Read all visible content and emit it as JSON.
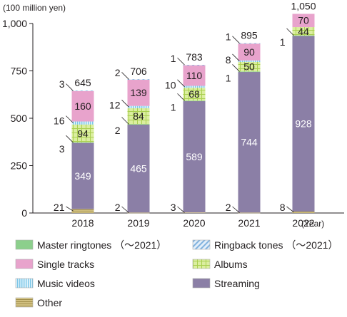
{
  "chart_data": {
    "type": "bar",
    "stacked": true,
    "y_unit_label": "(100 million yen)",
    "x_unit_label": "(Year)",
    "categories": [
      "2018",
      "2019",
      "2020",
      "2021",
      "2022"
    ],
    "y_ticks": [
      "0",
      "250",
      "500",
      "750",
      "1,000"
    ],
    "ylim": [
      0,
      1000
    ],
    "totals": [
      "645",
      "706",
      "783",
      "895",
      "1,050"
    ],
    "series": [
      {
        "key": "other",
        "name": "Other",
        "values": [
          21,
          2,
          3,
          2,
          8
        ],
        "labels": [
          "21",
          "2",
          "3",
          "2",
          "8"
        ],
        "color": "#c8b46e"
      },
      {
        "key": "streaming",
        "name": "Streaming",
        "values": [
          349,
          465,
          589,
          744,
          928
        ],
        "labels": [
          "349",
          "465",
          "589",
          "744",
          "928"
        ],
        "color": "#8b7fa6"
      },
      {
        "key": "master",
        "name": "Master ringtones （〜2021）",
        "values": [
          3,
          2,
          1,
          1,
          1
        ],
        "labels": [
          "3",
          "2",
          "1",
          "1",
          "1"
        ],
        "color": "#8ccf8c"
      },
      {
        "key": "albums",
        "name": "Albums",
        "values": [
          94,
          84,
          68,
          50,
          44
        ],
        "labels": [
          "94",
          "84",
          "68",
          "50",
          "44"
        ],
        "color": "#d4ea8a"
      },
      {
        "key": "videos",
        "name": "Music videos",
        "values": [
          16,
          12,
          10,
          8,
          0
        ],
        "labels": [
          "16",
          "12",
          "10",
          "8",
          ""
        ],
        "color": "#bfe6f7"
      },
      {
        "key": "single",
        "name": "Single tracks",
        "values": [
          160,
          139,
          110,
          90,
          70
        ],
        "labels": [
          "160",
          "139",
          "110",
          "90",
          "70"
        ],
        "color": "#e8a3cc"
      },
      {
        "key": "ringback",
        "name": "Ringback tones （〜2021）",
        "values": [
          3,
          2,
          1,
          1,
          0
        ],
        "labels": [
          "3",
          "2",
          "1",
          "1",
          ""
        ],
        "color": "#bcd8f0"
      }
    ],
    "legend_order": [
      "master",
      "ringback",
      "single",
      "albums",
      "videos",
      "streaming",
      "other"
    ],
    "legend_placement": "bottom",
    "grid": false
  }
}
